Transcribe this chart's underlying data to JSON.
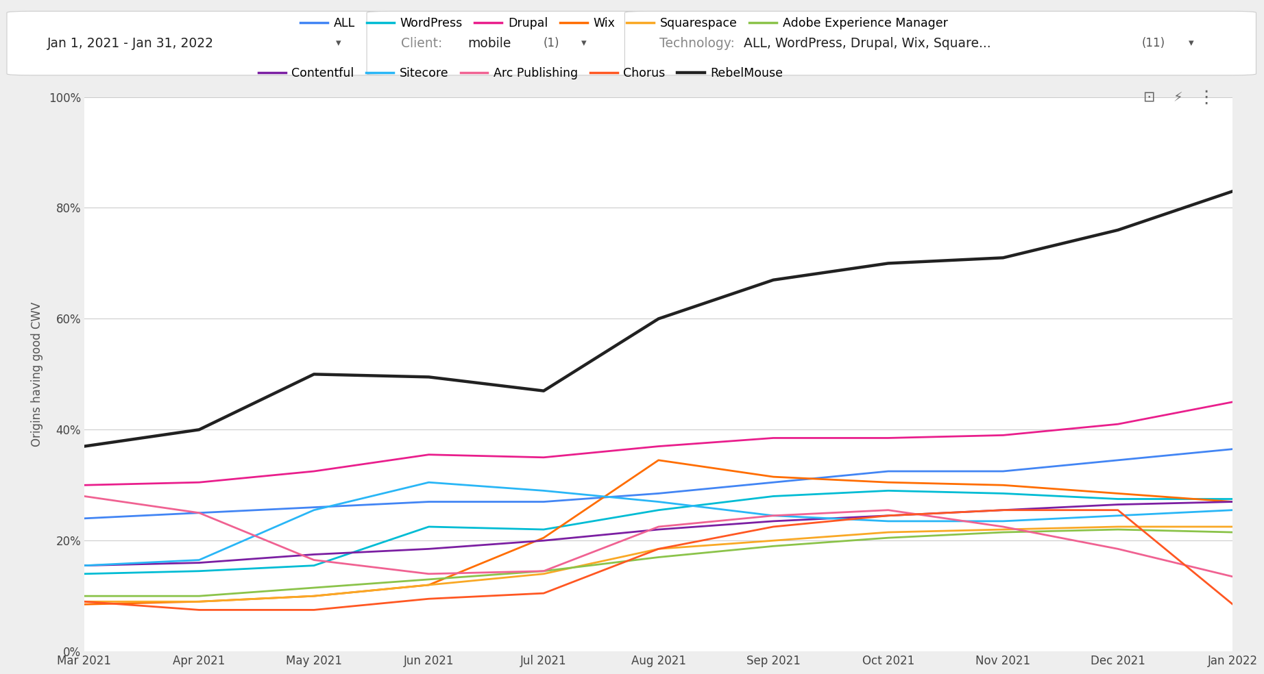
{
  "ylabel": "Origins having good CWV",
  "x_labels": [
    "Mar 2021",
    "Apr 2021",
    "May 2021",
    "Jun 2021",
    "Jul 2021",
    "Aug 2021",
    "Sep 2021",
    "Oct 2021",
    "Nov 2021",
    "Dec 2021",
    "Jan 2022"
  ],
  "series": [
    {
      "name": "ALL",
      "color": "#4285F4",
      "data": [
        0.24,
        0.25,
        0.26,
        0.27,
        0.27,
        0.285,
        0.305,
        0.325,
        0.325,
        0.345,
        0.365
      ]
    },
    {
      "name": "WordPress",
      "color": "#00BCD4",
      "data": [
        0.14,
        0.145,
        0.155,
        0.225,
        0.22,
        0.255,
        0.28,
        0.29,
        0.285,
        0.275,
        0.275
      ]
    },
    {
      "name": "Drupal",
      "color": "#E91E8C",
      "data": [
        0.3,
        0.305,
        0.325,
        0.355,
        0.35,
        0.37,
        0.385,
        0.385,
        0.39,
        0.41,
        0.45
      ]
    },
    {
      "name": "Wix",
      "color": "#FF6D00",
      "data": [
        0.085,
        0.09,
        0.1,
        0.12,
        0.205,
        0.345,
        0.315,
        0.305,
        0.3,
        0.285,
        0.27
      ]
    },
    {
      "name": "Squarespace",
      "color": "#F9A825",
      "data": [
        0.09,
        0.09,
        0.1,
        0.12,
        0.14,
        0.185,
        0.2,
        0.215,
        0.22,
        0.225,
        0.225
      ]
    },
    {
      "name": "Adobe Experience Manager",
      "color": "#8BC34A",
      "data": [
        0.1,
        0.1,
        0.115,
        0.13,
        0.145,
        0.17,
        0.19,
        0.205,
        0.215,
        0.22,
        0.215
      ]
    },
    {
      "name": "Contentful",
      "color": "#7B1FA2",
      "data": [
        0.155,
        0.16,
        0.175,
        0.185,
        0.2,
        0.22,
        0.235,
        0.245,
        0.255,
        0.265,
        0.27
      ]
    },
    {
      "name": "Sitecore",
      "color": "#29B6F6",
      "data": [
        0.155,
        0.165,
        0.255,
        0.305,
        0.29,
        0.27,
        0.245,
        0.235,
        0.235,
        0.245,
        0.255
      ]
    },
    {
      "name": "Arc Publishing",
      "color": "#F06292",
      "data": [
        0.28,
        0.25,
        0.165,
        0.14,
        0.145,
        0.225,
        0.245,
        0.255,
        0.225,
        0.185,
        0.135
      ]
    },
    {
      "name": "Chorus",
      "color": "#FF5722",
      "data": [
        0.09,
        0.075,
        0.075,
        0.095,
        0.105,
        0.185,
        0.225,
        0.245,
        0.255,
        0.255,
        0.085
      ]
    },
    {
      "name": "RebelMouse",
      "color": "#212121",
      "data": [
        0.37,
        0.4,
        0.5,
        0.495,
        0.47,
        0.6,
        0.67,
        0.7,
        0.71,
        0.76,
        0.83
      ]
    }
  ],
  "ylim": [
    0,
    1.0
  ],
  "yticks": [
    0.0,
    0.2,
    0.4,
    0.6,
    0.8,
    1.0
  ],
  "ytick_labels": [
    "0%",
    "20%",
    "40%",
    "60%",
    "80%",
    "100%"
  ],
  "header_bg": "#eeeeee",
  "header_box_bg": "#ffffff",
  "header_box_border": "#cccccc",
  "chart_bg": "#ffffff",
  "legend_row1": [
    "ALL",
    "WordPress",
    "Drupal",
    "Wix",
    "Squarespace",
    "Adobe Experience Manager"
  ],
  "legend_row2": [
    "Contentful",
    "Sitecore",
    "Arc Publishing",
    "Chorus",
    "RebelMouse"
  ],
  "header_date": "Jan 1, 2021 - Jan 31, 2022",
  "header_client_label": "Client:",
  "header_client_val": "mobile",
  "header_client_count": "(1)",
  "header_tech_label": "Technology:",
  "header_tech_val": "ALL, WordPress, Drupal, Wix, Square...",
  "header_tech_count": "(11)"
}
